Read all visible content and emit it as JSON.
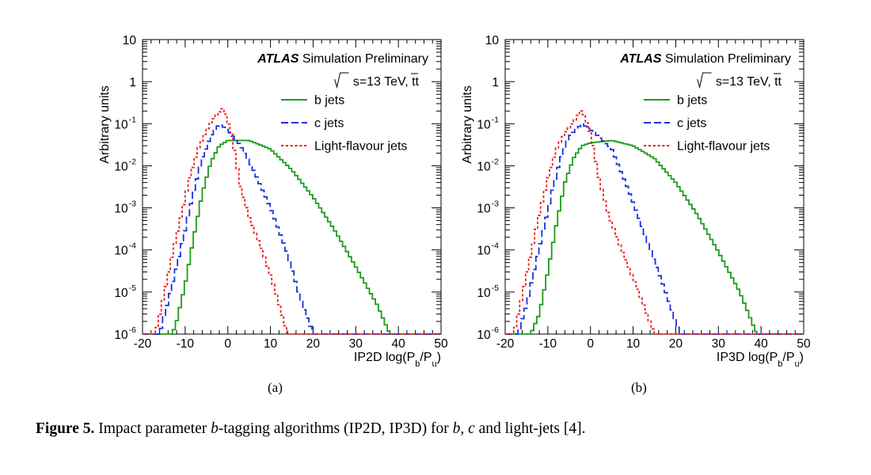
{
  "figure": {
    "label": "Figure 5.",
    "caption_text": {
      "pre": "Impact parameter ",
      "b1": "b",
      "mid1": "-tagging algorithms (IP2D, IP3D) for ",
      "b2": "b",
      "comma": ", ",
      "c": "c",
      "post": " and light-jets [4]."
    }
  },
  "panels": [
    {
      "sub_label": "(a)",
      "atlas_label": "ATLAS",
      "atlas_sub": "Simulation Preliminary",
      "energy_label": "s=13 TeV, tt",
      "xlabel": "IP2D log(P",
      "xlabel_sub1": "b",
      "xlabel_mid": "/P",
      "xlabel_sub2": "u",
      "xlabel_end": ")"
    },
    {
      "sub_label": "(b)",
      "atlas_label": "ATLAS",
      "atlas_sub": "Simulation Preliminary",
      "energy_label": "s=13 TeV, tt",
      "xlabel": "IP3D log(P",
      "xlabel_sub1": "b",
      "xlabel_mid": "/P",
      "xlabel_sub2": "u",
      "xlabel_end": ")"
    }
  ],
  "chart_data": [
    {
      "type": "line",
      "ylabel": "Arbitrary units",
      "yscale": "log",
      "xlim": [
        -20,
        50
      ],
      "ylim": [
        1e-06,
        10
      ],
      "x_ticks": [
        -20,
        -10,
        0,
        10,
        20,
        30,
        40,
        50
      ],
      "y_ticks": [
        "10^-6",
        "10^-5",
        "10^-4",
        "10^-3",
        "10^-2",
        "10^-1",
        "1",
        "10"
      ],
      "legend_position": "top-right",
      "series": [
        {
          "name": "b jets",
          "color": "#1a9c1a",
          "dash": "solid",
          "points": [
            [
              -13,
              1e-06
            ],
            [
              -12,
              2e-06
            ],
            [
              -10,
              1.5e-05
            ],
            [
              -8,
              0.0002
            ],
            [
              -6,
              0.0022
            ],
            [
              -4,
              0.012
            ],
            [
              -2,
              0.03
            ],
            [
              0,
              0.04
            ],
            [
              5,
              0.04
            ],
            [
              10,
              0.025
            ],
            [
              15,
              0.008
            ],
            [
              20,
              0.0018
            ],
            [
              25,
              0.0003
            ],
            [
              30,
              4e-05
            ],
            [
              35,
              5e-06
            ],
            [
              38,
              1e-06
            ]
          ]
        },
        {
          "name": "c jets",
          "color": "#1a2fe0",
          "dash": "dashed",
          "points": [
            [
              -16,
              1e-06
            ],
            [
              -14,
              6e-06
            ],
            [
              -12,
              4e-05
            ],
            [
              -10,
              0.0003
            ],
            [
              -8,
              0.0025
            ],
            [
              -6,
              0.015
            ],
            [
              -4,
              0.05
            ],
            [
              -2,
              0.1
            ],
            [
              0,
              0.07
            ],
            [
              3,
              0.03
            ],
            [
              6,
              0.008
            ],
            [
              10,
              0.001
            ],
            [
              14,
              8e-05
            ],
            [
              17,
              7e-06
            ],
            [
              20,
              1e-06
            ]
          ]
        },
        {
          "name": "Light-flavour jets",
          "color": "#ee1c1c",
          "dash": "dotted",
          "points": [
            [
              -17,
              1e-06
            ],
            [
              -15,
              8e-06
            ],
            [
              -13,
              8e-05
            ],
            [
              -11,
              0.0006
            ],
            [
              -9,
              0.005
            ],
            [
              -7,
              0.025
            ],
            [
              -5,
              0.07
            ],
            [
              -3,
              0.15
            ],
            [
              -1,
              0.24
            ],
            [
              1,
              0.05
            ],
            [
              3,
              0.003
            ],
            [
              5,
              0.0006
            ],
            [
              8,
              0.0001
            ],
            [
              11,
              1.2e-05
            ],
            [
              14,
              1e-06
            ]
          ]
        }
      ]
    },
    {
      "type": "line",
      "ylabel": "Arbitrary units",
      "yscale": "log",
      "xlim": [
        -20,
        50
      ],
      "ylim": [
        1e-06,
        10
      ],
      "x_ticks": [
        -20,
        -10,
        0,
        10,
        20,
        30,
        40,
        50
      ],
      "y_ticks": [
        "10^-6",
        "10^-5",
        "10^-4",
        "10^-3",
        "10^-2",
        "10^-1",
        "1",
        "10"
      ],
      "legend_position": "top-right",
      "series": [
        {
          "name": "b jets",
          "color": "#1a9c1a",
          "dash": "solid",
          "points": [
            [
              -14,
              1e-06
            ],
            [
              -12,
              3e-06
            ],
            [
              -10,
              3e-05
            ],
            [
              -8,
              0.0004
            ],
            [
              -6,
              0.004
            ],
            [
              -4,
              0.015
            ],
            [
              -2,
              0.03
            ],
            [
              0,
              0.035
            ],
            [
              5,
              0.04
            ],
            [
              10,
              0.03
            ],
            [
              15,
              0.015
            ],
            [
              20,
              0.004
            ],
            [
              25,
              0.0007
            ],
            [
              30,
              9e-05
            ],
            [
              35,
              1e-05
            ],
            [
              39,
              1e-06
            ]
          ]
        },
        {
          "name": "c jets",
          "color": "#1a2fe0",
          "dash": "dashed",
          "points": [
            [
              -17,
              1e-06
            ],
            [
              -15,
              5e-06
            ],
            [
              -13,
              4e-05
            ],
            [
              -11,
              0.0003
            ],
            [
              -9,
              0.0025
            ],
            [
              -7,
              0.015
            ],
            [
              -5,
              0.05
            ],
            [
              -2,
              0.1
            ],
            [
              1,
              0.06
            ],
            [
              5,
              0.025
            ],
            [
              9,
              0.0025
            ],
            [
              13,
              0.0002
            ],
            [
              17,
              1.5e-05
            ],
            [
              21,
              1e-06
            ]
          ]
        },
        {
          "name": "Light-flavour jets",
          "color": "#ee1c1c",
          "dash": "dotted",
          "points": [
            [
              -18,
              1e-06
            ],
            [
              -16,
              8e-06
            ],
            [
              -14,
              8e-05
            ],
            [
              -12,
              0.0007
            ],
            [
              -10,
              0.005
            ],
            [
              -8,
              0.025
            ],
            [
              -6,
              0.06
            ],
            [
              -4,
              0.11
            ],
            [
              -2,
              0.22
            ],
            [
              0,
              0.06
            ],
            [
              2,
              0.005
            ],
            [
              4,
              0.0008
            ],
            [
              7,
              0.00012
            ],
            [
              11,
              1.2e-05
            ],
            [
              15,
              1e-06
            ]
          ]
        }
      ]
    }
  ]
}
